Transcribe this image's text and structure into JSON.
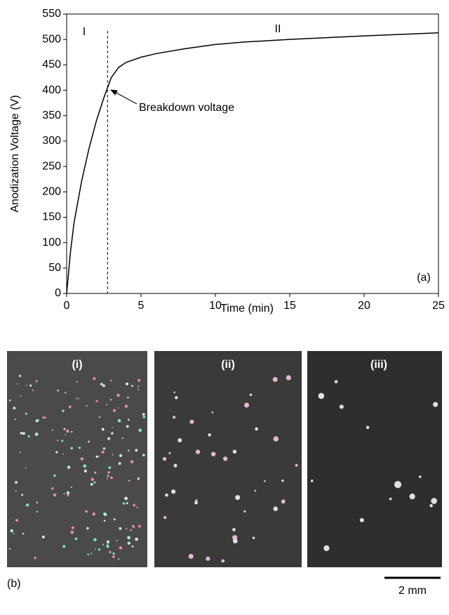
{
  "chart_data": {
    "type": "line",
    "x_label": "Time (min)",
    "y_label": "Anodization Voltage (V)",
    "x": [
      0,
      0.25,
      0.5,
      1,
      1.5,
      2,
      2.5,
      2.75,
      3,
      3.5,
      4,
      5,
      6,
      8,
      10,
      12,
      15,
      20,
      25
    ],
    "values": [
      0,
      80,
      140,
      220,
      285,
      340,
      385,
      405,
      425,
      445,
      455,
      465,
      472,
      482,
      490,
      495,
      500,
      507,
      513
    ],
    "color": "#000000",
    "xlim": [
      0,
      25
    ],
    "ylim": [
      0,
      550
    ],
    "xticks": [
      0,
      5,
      10,
      15,
      20,
      25
    ],
    "yticks": [
      0,
      50,
      100,
      150,
      200,
      250,
      300,
      350,
      400,
      450,
      500,
      550
    ],
    "breakdown_time": 2.75,
    "annotations": {
      "stage_1": "I",
      "stage_2": "II",
      "breakdown": "Breakdown voltage",
      "panel": "(a)"
    }
  },
  "photos": {
    "label": "(b)",
    "panels": [
      "(i)",
      "(ii)",
      "(iii)"
    ],
    "scale_bar": "2 mm"
  }
}
